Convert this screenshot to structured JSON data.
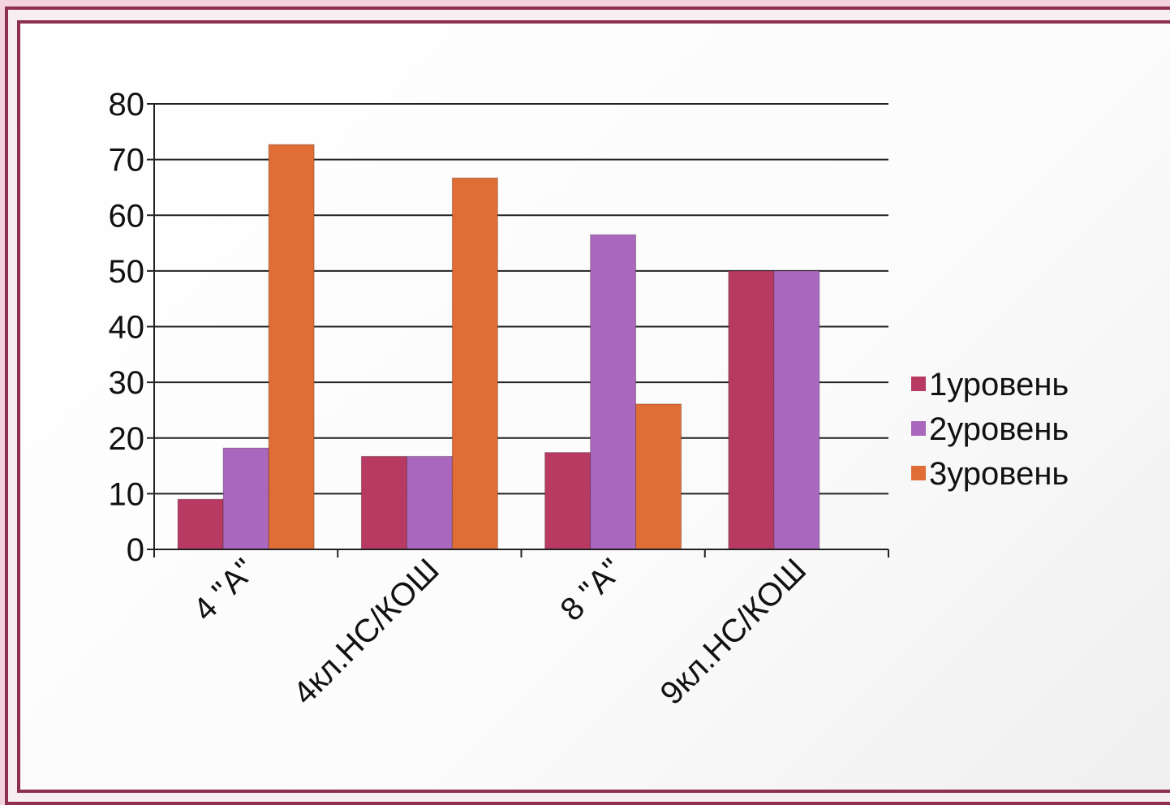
{
  "chart_data": {
    "type": "bar",
    "categories": [
      "4 \"А\"",
      "4кл.НС/КОШ",
      "8 \"А\"",
      "9кл.НС/КОШ"
    ],
    "series": [
      {
        "name": "1уровень",
        "values": [
          9,
          16.7,
          17.4,
          50
        ],
        "color": "#b83a62"
      },
      {
        "name": "2уровень",
        "values": [
          18.2,
          16.7,
          56.5,
          50
        ],
        "color": "#a967bd"
      },
      {
        "name": "3уровень",
        "values": [
          72.7,
          66.7,
          26.1,
          0
        ],
        "color": "#e06d36"
      }
    ],
    "ylim": [
      0,
      80
    ],
    "yticks": [
      0,
      10,
      20,
      30,
      40,
      50,
      60,
      70,
      80
    ],
    "grid": true,
    "legend": "right"
  },
  "colors": {
    "frame": "#8e2f4d",
    "background": "#f3d3dd"
  }
}
